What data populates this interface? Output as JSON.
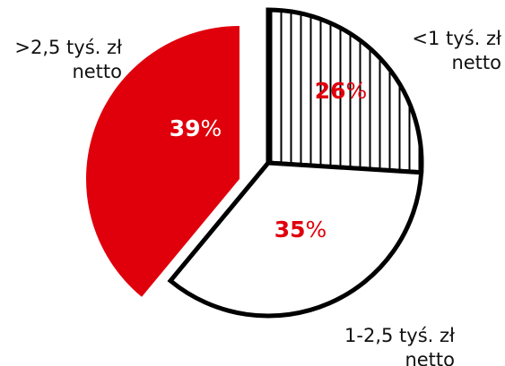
{
  "chart_data": {
    "type": "pie",
    "slices": [
      {
        "label_lines": [
          "<1 tyś. zł",
          "netto"
        ],
        "value": 26,
        "value_text": "26",
        "unit": "%",
        "style": "hatched"
      },
      {
        "label_lines": [
          "1-2,5 tyś. zł",
          "netto"
        ],
        "value": 35,
        "value_text": "35",
        "unit": "%",
        "style": "plain"
      },
      {
        "label_lines": [
          ">2,5 tyś. zł",
          "netto"
        ],
        "value": 39,
        "value_text": "39",
        "unit": "%",
        "style": "filled",
        "exploded": true
      }
    ],
    "colors": {
      "outline": "#000000",
      "red": "#e0000c",
      "value_text_on_white": "#e0000c",
      "value_text_on_red": "#ffffff",
      "hatch": "#000000"
    }
  }
}
